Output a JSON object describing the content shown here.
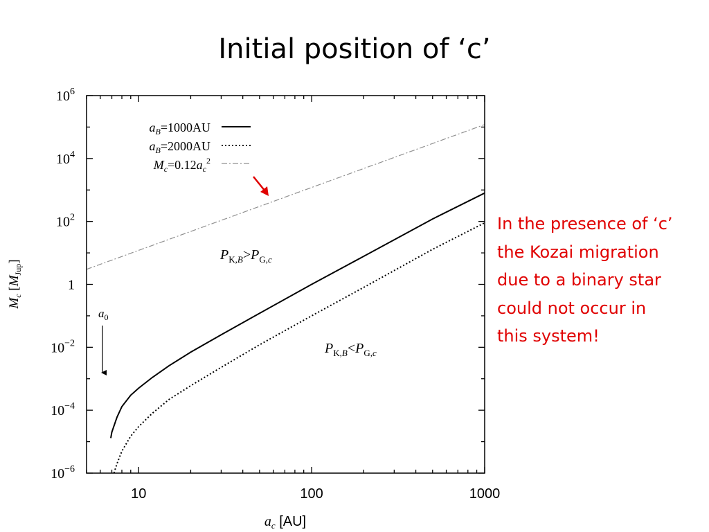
{
  "slide": {
    "title": "Initial position of ‘c’",
    "note_lines": [
      "In the presence of ‘c’",
      "the Kozai migration",
      "due to a binary star",
      "could not occur in",
      "this system!"
    ],
    "note_color": "#e00000"
  },
  "chart_data": {
    "type": "line",
    "xlabel": "a_c [AU]",
    "ylabel": "M_c [M_Jup]",
    "xscale": "log",
    "yscale": "log",
    "xlim": [
      5,
      1000
    ],
    "ylim": [
      1e-06,
      1000000.0
    ],
    "xticks": [
      {
        "value": 10,
        "label": "10"
      },
      {
        "value": 100,
        "label": "100"
      },
      {
        "value": 1000,
        "label": "1000"
      }
    ],
    "yticks": [
      {
        "value": 1e-06,
        "base": "10",
        "exp": "−6"
      },
      {
        "value": 0.0001,
        "base": "10",
        "exp": "−4"
      },
      {
        "value": 0.01,
        "base": "10",
        "exp": "−2"
      },
      {
        "value": 1,
        "base": "1",
        "exp": ""
      },
      {
        "value": 100.0,
        "base": "10",
        "exp": "2"
      },
      {
        "value": 10000.0,
        "base": "10",
        "exp": "4"
      },
      {
        "value": 1000000.0,
        "base": "10",
        "exp": "6"
      }
    ],
    "legend_position": "top-left",
    "series": [
      {
        "name": "a_B=1000AU",
        "style": "solid",
        "color": "#000000",
        "x": [
          6.9,
          7,
          7.5,
          8,
          9,
          10,
          12,
          15,
          20,
          30,
          50,
          100,
          200,
          500,
          1000
        ],
        "y": [
          1.3e-05,
          2e-05,
          6e-05,
          0.00013,
          0.0003,
          0.0005,
          0.0011,
          0.0026,
          0.007,
          0.025,
          0.12,
          1.0,
          7.8,
          120.0,
          800.0
        ]
      },
      {
        "name": "a_B=2000AU",
        "style": "dotted",
        "color": "#000000",
        "x": [
          7.2,
          7.5,
          8,
          9,
          10,
          12,
          15,
          20,
          30,
          50,
          100,
          200,
          500,
          1000
        ],
        "y": [
          1e-06,
          2e-06,
          5e-06,
          1.5e-05,
          3e-05,
          8e-05,
          0.00022,
          0.0006,
          0.0023,
          0.012,
          0.1,
          0.8,
          13.0,
          90.0
        ]
      },
      {
        "name": "M_c=0.12a_c^2",
        "style": "dashdot",
        "color": "#909090",
        "x": [
          5,
          1000
        ],
        "y": [
          3.0,
          120000.0
        ]
      }
    ],
    "annotations": [
      {
        "text": "P_K,B>P_G,c",
        "x": 50,
        "y": 3
      },
      {
        "text": "P_K,B<P_G,c",
        "x": 200,
        "y": 0.01
      },
      {
        "text": "a0",
        "x": 6.3,
        "y": 0.3,
        "arrow_to_y": 0.0025
      }
    ],
    "highlight_arrow": {
      "color": "#e00000",
      "x": 58,
      "y": 400
    }
  }
}
